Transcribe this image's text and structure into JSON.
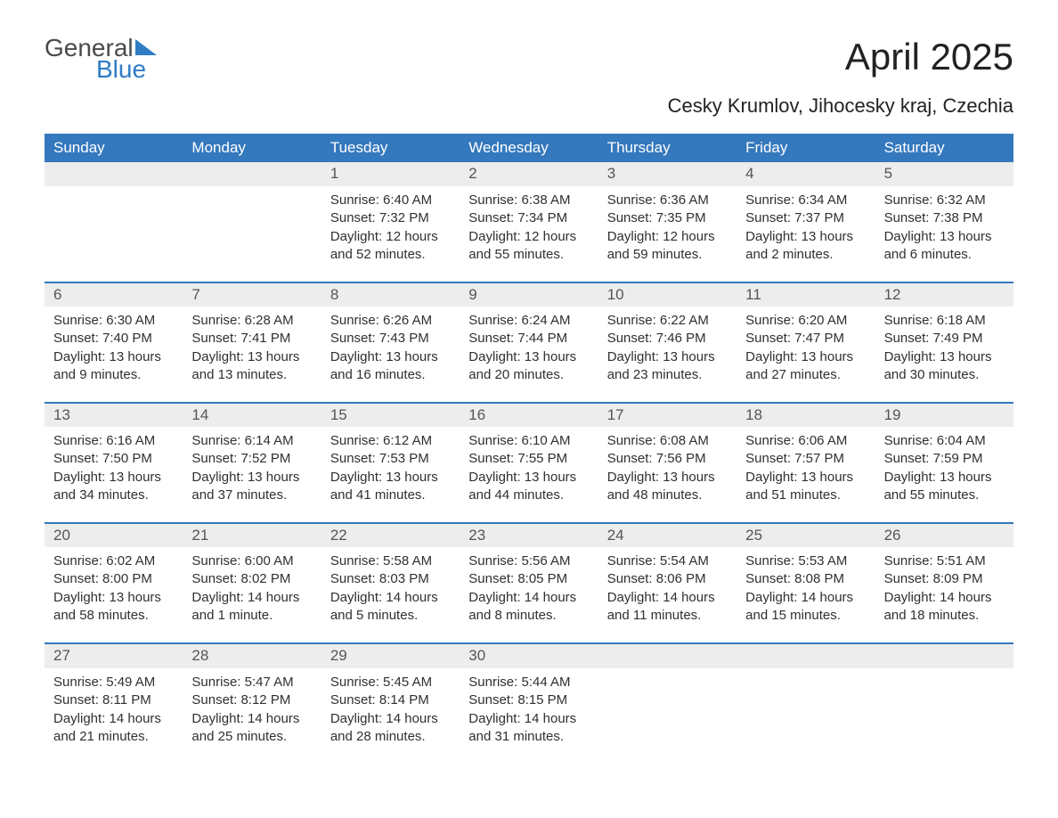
{
  "logo": {
    "text1": "General",
    "text2": "Blue"
  },
  "title": "April 2025",
  "location": "Cesky Krumlov, Jihocesky kraj, Czechia",
  "calendar": {
    "type": "table",
    "header_bg": "#3478bd",
    "header_fg": "#ffffff",
    "daynum_bg": "#ededed",
    "border_color": "#3478bd",
    "text_color": "#303030",
    "fontsize_header": 17,
    "fontsize_body": 15,
    "columns": [
      "Sunday",
      "Monday",
      "Tuesday",
      "Wednesday",
      "Thursday",
      "Friday",
      "Saturday"
    ],
    "weeks": [
      [
        null,
        null,
        {
          "n": "1",
          "sr": "Sunrise: 6:40 AM",
          "ss": "Sunset: 7:32 PM",
          "dl1": "Daylight: 12 hours",
          "dl2": "and 52 minutes."
        },
        {
          "n": "2",
          "sr": "Sunrise: 6:38 AM",
          "ss": "Sunset: 7:34 PM",
          "dl1": "Daylight: 12 hours",
          "dl2": "and 55 minutes."
        },
        {
          "n": "3",
          "sr": "Sunrise: 6:36 AM",
          "ss": "Sunset: 7:35 PM",
          "dl1": "Daylight: 12 hours",
          "dl2": "and 59 minutes."
        },
        {
          "n": "4",
          "sr": "Sunrise: 6:34 AM",
          "ss": "Sunset: 7:37 PM",
          "dl1": "Daylight: 13 hours",
          "dl2": "and 2 minutes."
        },
        {
          "n": "5",
          "sr": "Sunrise: 6:32 AM",
          "ss": "Sunset: 7:38 PM",
          "dl1": "Daylight: 13 hours",
          "dl2": "and 6 minutes."
        }
      ],
      [
        {
          "n": "6",
          "sr": "Sunrise: 6:30 AM",
          "ss": "Sunset: 7:40 PM",
          "dl1": "Daylight: 13 hours",
          "dl2": "and 9 minutes."
        },
        {
          "n": "7",
          "sr": "Sunrise: 6:28 AM",
          "ss": "Sunset: 7:41 PM",
          "dl1": "Daylight: 13 hours",
          "dl2": "and 13 minutes."
        },
        {
          "n": "8",
          "sr": "Sunrise: 6:26 AM",
          "ss": "Sunset: 7:43 PM",
          "dl1": "Daylight: 13 hours",
          "dl2": "and 16 minutes."
        },
        {
          "n": "9",
          "sr": "Sunrise: 6:24 AM",
          "ss": "Sunset: 7:44 PM",
          "dl1": "Daylight: 13 hours",
          "dl2": "and 20 minutes."
        },
        {
          "n": "10",
          "sr": "Sunrise: 6:22 AM",
          "ss": "Sunset: 7:46 PM",
          "dl1": "Daylight: 13 hours",
          "dl2": "and 23 minutes."
        },
        {
          "n": "11",
          "sr": "Sunrise: 6:20 AM",
          "ss": "Sunset: 7:47 PM",
          "dl1": "Daylight: 13 hours",
          "dl2": "and 27 minutes."
        },
        {
          "n": "12",
          "sr": "Sunrise: 6:18 AM",
          "ss": "Sunset: 7:49 PM",
          "dl1": "Daylight: 13 hours",
          "dl2": "and 30 minutes."
        }
      ],
      [
        {
          "n": "13",
          "sr": "Sunrise: 6:16 AM",
          "ss": "Sunset: 7:50 PM",
          "dl1": "Daylight: 13 hours",
          "dl2": "and 34 minutes."
        },
        {
          "n": "14",
          "sr": "Sunrise: 6:14 AM",
          "ss": "Sunset: 7:52 PM",
          "dl1": "Daylight: 13 hours",
          "dl2": "and 37 minutes."
        },
        {
          "n": "15",
          "sr": "Sunrise: 6:12 AM",
          "ss": "Sunset: 7:53 PM",
          "dl1": "Daylight: 13 hours",
          "dl2": "and 41 minutes."
        },
        {
          "n": "16",
          "sr": "Sunrise: 6:10 AM",
          "ss": "Sunset: 7:55 PM",
          "dl1": "Daylight: 13 hours",
          "dl2": "and 44 minutes."
        },
        {
          "n": "17",
          "sr": "Sunrise: 6:08 AM",
          "ss": "Sunset: 7:56 PM",
          "dl1": "Daylight: 13 hours",
          "dl2": "and 48 minutes."
        },
        {
          "n": "18",
          "sr": "Sunrise: 6:06 AM",
          "ss": "Sunset: 7:57 PM",
          "dl1": "Daylight: 13 hours",
          "dl2": "and 51 minutes."
        },
        {
          "n": "19",
          "sr": "Sunrise: 6:04 AM",
          "ss": "Sunset: 7:59 PM",
          "dl1": "Daylight: 13 hours",
          "dl2": "and 55 minutes."
        }
      ],
      [
        {
          "n": "20",
          "sr": "Sunrise: 6:02 AM",
          "ss": "Sunset: 8:00 PM",
          "dl1": "Daylight: 13 hours",
          "dl2": "and 58 minutes."
        },
        {
          "n": "21",
          "sr": "Sunrise: 6:00 AM",
          "ss": "Sunset: 8:02 PM",
          "dl1": "Daylight: 14 hours",
          "dl2": "and 1 minute."
        },
        {
          "n": "22",
          "sr": "Sunrise: 5:58 AM",
          "ss": "Sunset: 8:03 PM",
          "dl1": "Daylight: 14 hours",
          "dl2": "and 5 minutes."
        },
        {
          "n": "23",
          "sr": "Sunrise: 5:56 AM",
          "ss": "Sunset: 8:05 PM",
          "dl1": "Daylight: 14 hours",
          "dl2": "and 8 minutes."
        },
        {
          "n": "24",
          "sr": "Sunrise: 5:54 AM",
          "ss": "Sunset: 8:06 PM",
          "dl1": "Daylight: 14 hours",
          "dl2": "and 11 minutes."
        },
        {
          "n": "25",
          "sr": "Sunrise: 5:53 AM",
          "ss": "Sunset: 8:08 PM",
          "dl1": "Daylight: 14 hours",
          "dl2": "and 15 minutes."
        },
        {
          "n": "26",
          "sr": "Sunrise: 5:51 AM",
          "ss": "Sunset: 8:09 PM",
          "dl1": "Daylight: 14 hours",
          "dl2": "and 18 minutes."
        }
      ],
      [
        {
          "n": "27",
          "sr": "Sunrise: 5:49 AM",
          "ss": "Sunset: 8:11 PM",
          "dl1": "Daylight: 14 hours",
          "dl2": "and 21 minutes."
        },
        {
          "n": "28",
          "sr": "Sunrise: 5:47 AM",
          "ss": "Sunset: 8:12 PM",
          "dl1": "Daylight: 14 hours",
          "dl2": "and 25 minutes."
        },
        {
          "n": "29",
          "sr": "Sunrise: 5:45 AM",
          "ss": "Sunset: 8:14 PM",
          "dl1": "Daylight: 14 hours",
          "dl2": "and 28 minutes."
        },
        {
          "n": "30",
          "sr": "Sunrise: 5:44 AM",
          "ss": "Sunset: 8:15 PM",
          "dl1": "Daylight: 14 hours",
          "dl2": "and 31 minutes."
        },
        null,
        null,
        null
      ]
    ]
  }
}
